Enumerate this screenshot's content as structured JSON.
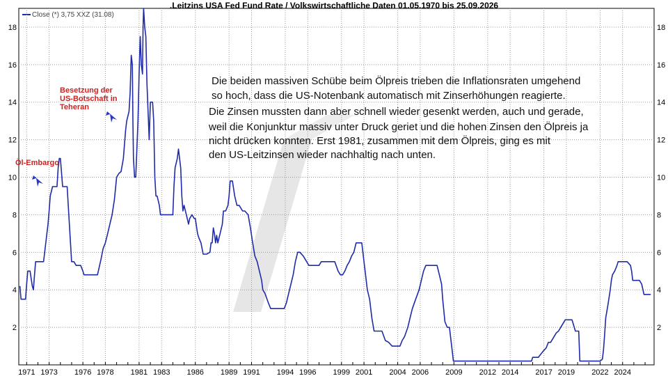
{
  "chart_data": {
    "type": "line",
    "title": ".Leitzins USA Fed Fund Rate / Volkswirtschaftliche Daten 01.05.1970 bis 25.09.2026",
    "legend": "Close (*) 3,75 XXZ (31.08)",
    "x_tick_labels": [
      "1971",
      "1973",
      "1976",
      "1978",
      "1981",
      "1983",
      "1986",
      "1989",
      "1991",
      "1994",
      "1996",
      "1999",
      "2001",
      "2004",
      "2006",
      "2009",
      "2012",
      "2014",
      "2017",
      "2019",
      "2022",
      "2024"
    ],
    "y_ticks": [
      2,
      4,
      6,
      8,
      10,
      12,
      14,
      16,
      18
    ],
    "ylim": [
      0,
      19
    ],
    "xlim": [
      1970.3,
      2026.8
    ],
    "grid": true,
    "series": [
      {
        "color": "#1f2aa8",
        "points": [
          [
            1970.4,
            4.2
          ],
          [
            1970.5,
            3.5
          ],
          [
            1970.9,
            3.5
          ],
          [
            1971.0,
            4.3
          ],
          [
            1971.1,
            5.0
          ],
          [
            1971.3,
            5.0
          ],
          [
            1971.5,
            4.2
          ],
          [
            1971.6,
            4.0
          ],
          [
            1971.7,
            4.8
          ],
          [
            1971.8,
            5.5
          ],
          [
            1972.0,
            5.5
          ],
          [
            1972.2,
            5.5
          ],
          [
            1972.5,
            5.5
          ],
          [
            1972.7,
            6.5
          ],
          [
            1972.9,
            7.5
          ],
          [
            1973.0,
            8.2
          ],
          [
            1973.1,
            9.0
          ],
          [
            1973.3,
            9.5
          ],
          [
            1973.5,
            9.5
          ],
          [
            1973.7,
            9.5
          ],
          [
            1973.8,
            10.5
          ],
          [
            1973.9,
            11.0
          ],
          [
            1974.0,
            11.0
          ],
          [
            1974.2,
            9.5
          ],
          [
            1974.4,
            9.5
          ],
          [
            1974.6,
            9.5
          ],
          [
            1974.8,
            7.5
          ],
          [
            1974.9,
            6.5
          ],
          [
            1975.0,
            5.5
          ],
          [
            1975.2,
            5.5
          ],
          [
            1975.4,
            5.3
          ],
          [
            1975.6,
            5.3
          ],
          [
            1975.8,
            5.3
          ],
          [
            1976.0,
            5.0
          ],
          [
            1976.1,
            4.8
          ],
          [
            1976.4,
            4.8
          ],
          [
            1976.7,
            4.8
          ],
          [
            1977.0,
            4.8
          ],
          [
            1977.3,
            4.8
          ],
          [
            1977.6,
            5.6
          ],
          [
            1977.8,
            6.2
          ],
          [
            1978.0,
            6.5
          ],
          [
            1978.2,
            7.0
          ],
          [
            1978.4,
            7.5
          ],
          [
            1978.6,
            8.0
          ],
          [
            1978.8,
            8.8
          ],
          [
            1979.0,
            10.0
          ],
          [
            1979.2,
            10.2
          ],
          [
            1979.4,
            10.3
          ],
          [
            1979.6,
            11.0
          ],
          [
            1979.8,
            12.5
          ],
          [
            1979.9,
            13.0
          ],
          [
            1980.1,
            13.5
          ],
          [
            1980.2,
            14.5
          ],
          [
            1980.3,
            16.5
          ],
          [
            1980.4,
            16.0
          ],
          [
            1980.45,
            13.0
          ],
          [
            1980.5,
            11.0
          ],
          [
            1980.6,
            10.0
          ],
          [
            1980.7,
            10.0
          ],
          [
            1980.8,
            11.5
          ],
          [
            1980.9,
            13.0
          ],
          [
            1981.0,
            15.5
          ],
          [
            1981.1,
            17.5
          ],
          [
            1981.2,
            16.0
          ],
          [
            1981.3,
            15.5
          ],
          [
            1981.35,
            18.0
          ],
          [
            1981.4,
            19.0
          ],
          [
            1981.5,
            18.0
          ],
          [
            1981.6,
            17.5
          ],
          [
            1981.7,
            15.0
          ],
          [
            1981.8,
            13.5
          ],
          [
            1981.9,
            12.0
          ],
          [
            1982.0,
            14.0
          ],
          [
            1982.2,
            14.0
          ],
          [
            1982.3,
            13.0
          ],
          [
            1982.4,
            10.0
          ],
          [
            1982.5,
            9.0
          ],
          [
            1982.6,
            9.0
          ],
          [
            1982.8,
            8.5
          ],
          [
            1982.9,
            8.0
          ],
          [
            1983.2,
            8.0
          ],
          [
            1983.5,
            8.0
          ],
          [
            1983.8,
            8.0
          ],
          [
            1984.0,
            8.0
          ],
          [
            1984.1,
            9.5
          ],
          [
            1984.2,
            10.5
          ],
          [
            1984.4,
            11.0
          ],
          [
            1984.5,
            11.5
          ],
          [
            1984.7,
            10.5
          ],
          [
            1984.8,
            9.0
          ],
          [
            1984.9,
            8.2
          ],
          [
            1985.0,
            8.5
          ],
          [
            1985.2,
            8.0
          ],
          [
            1985.4,
            7.5
          ],
          [
            1985.5,
            7.8
          ],
          [
            1985.7,
            8.0
          ],
          [
            1985.9,
            7.8
          ],
          [
            1986.0,
            7.8
          ],
          [
            1986.2,
            7.0
          ],
          [
            1986.3,
            6.8
          ],
          [
            1986.5,
            6.5
          ],
          [
            1986.7,
            5.9
          ],
          [
            1987.0,
            5.9
          ],
          [
            1987.3,
            6.0
          ],
          [
            1987.4,
            6.5
          ],
          [
            1987.5,
            6.5
          ],
          [
            1987.6,
            7.3
          ],
          [
            1987.7,
            7.0
          ],
          [
            1987.8,
            6.5
          ],
          [
            1987.9,
            6.9
          ],
          [
            1988.0,
            6.5
          ],
          [
            1988.2,
            7.0
          ],
          [
            1988.4,
            7.5
          ],
          [
            1988.5,
            8.2
          ],
          [
            1988.7,
            8.2
          ],
          [
            1988.9,
            8.5
          ],
          [
            1989.0,
            9.0
          ],
          [
            1989.1,
            9.8
          ],
          [
            1989.3,
            9.8
          ],
          [
            1989.5,
            9.0
          ],
          [
            1989.7,
            8.5
          ],
          [
            1989.9,
            8.5
          ],
          [
            1990.2,
            8.2
          ],
          [
            1990.4,
            8.2
          ],
          [
            1990.7,
            8.0
          ],
          [
            1990.9,
            7.3
          ],
          [
            1991.1,
            6.5
          ],
          [
            1991.3,
            5.8
          ],
          [
            1991.5,
            5.5
          ],
          [
            1991.7,
            5.0
          ],
          [
            1991.9,
            4.5
          ],
          [
            1992.0,
            4.0
          ],
          [
            1992.2,
            3.8
          ],
          [
            1992.5,
            3.3
          ],
          [
            1992.7,
            3.0
          ],
          [
            1993.0,
            3.0
          ],
          [
            1993.5,
            3.0
          ],
          [
            1993.9,
            3.0
          ],
          [
            1994.1,
            3.3
          ],
          [
            1994.3,
            3.8
          ],
          [
            1994.5,
            4.3
          ],
          [
            1994.7,
            4.8
          ],
          [
            1994.9,
            5.5
          ],
          [
            1995.1,
            6.0
          ],
          [
            1995.3,
            6.0
          ],
          [
            1995.6,
            5.8
          ],
          [
            1995.9,
            5.5
          ],
          [
            1996.1,
            5.3
          ],
          [
            1996.4,
            5.3
          ],
          [
            1996.8,
            5.3
          ],
          [
            1997.0,
            5.3
          ],
          [
            1997.2,
            5.5
          ],
          [
            1997.5,
            5.5
          ],
          [
            1997.8,
            5.5
          ],
          [
            1998.0,
            5.5
          ],
          [
            1998.4,
            5.5
          ],
          [
            1998.7,
            5.0
          ],
          [
            1998.9,
            4.8
          ],
          [
            1999.1,
            4.8
          ],
          [
            1999.3,
            5.0
          ],
          [
            1999.5,
            5.3
          ],
          [
            1999.7,
            5.5
          ],
          [
            1999.9,
            5.8
          ],
          [
            2000.1,
            6.0
          ],
          [
            2000.3,
            6.5
          ],
          [
            2000.5,
            6.5
          ],
          [
            2000.8,
            6.5
          ],
          [
            2001.0,
            5.5
          ],
          [
            2001.2,
            4.5
          ],
          [
            2001.3,
            4.0
          ],
          [
            2001.5,
            3.5
          ],
          [
            2001.7,
            2.5
          ],
          [
            2001.9,
            1.8
          ],
          [
            2002.2,
            1.8
          ],
          [
            2002.6,
            1.8
          ],
          [
            2002.9,
            1.3
          ],
          [
            2003.2,
            1.2
          ],
          [
            2003.5,
            1.0
          ],
          [
            2003.8,
            1.0
          ],
          [
            2004.2,
            1.0
          ],
          [
            2004.4,
            1.3
          ],
          [
            2004.6,
            1.5
          ],
          [
            2004.9,
            2.0
          ],
          [
            2005.1,
            2.5
          ],
          [
            2005.3,
            3.0
          ],
          [
            2005.6,
            3.5
          ],
          [
            2005.9,
            4.0
          ],
          [
            2006.1,
            4.5
          ],
          [
            2006.3,
            5.0
          ],
          [
            2006.5,
            5.3
          ],
          [
            2006.8,
            5.3
          ],
          [
            2007.2,
            5.3
          ],
          [
            2007.5,
            5.3
          ],
          [
            2007.7,
            4.8
          ],
          [
            2007.9,
            4.3
          ],
          [
            2008.0,
            3.5
          ],
          [
            2008.2,
            2.3
          ],
          [
            2008.4,
            2.0
          ],
          [
            2008.6,
            2.0
          ],
          [
            2008.8,
            1.0
          ],
          [
            2008.95,
            0.2
          ],
          [
            2009.5,
            0.2
          ],
          [
            2011.0,
            0.2
          ],
          [
            2013.0,
            0.2
          ],
          [
            2015.0,
            0.2
          ],
          [
            2015.9,
            0.2
          ],
          [
            2016.0,
            0.4
          ],
          [
            2016.5,
            0.4
          ],
          [
            2016.9,
            0.7
          ],
          [
            2017.2,
            0.9
          ],
          [
            2017.4,
            1.2
          ],
          [
            2017.6,
            1.2
          ],
          [
            2017.9,
            1.5
          ],
          [
            2018.1,
            1.7
          ],
          [
            2018.3,
            1.8
          ],
          [
            2018.5,
            2.0
          ],
          [
            2018.7,
            2.2
          ],
          [
            2018.9,
            2.4
          ],
          [
            2019.2,
            2.4
          ],
          [
            2019.5,
            2.4
          ],
          [
            2019.6,
            2.2
          ],
          [
            2019.7,
            2.0
          ],
          [
            2019.8,
            1.8
          ],
          [
            2020.1,
            1.8
          ],
          [
            2020.2,
            0.2
          ],
          [
            2021.0,
            0.2
          ],
          [
            2022.0,
            0.2
          ],
          [
            2022.2,
            0.3
          ],
          [
            2022.3,
            0.8
          ],
          [
            2022.4,
            1.6
          ],
          [
            2022.5,
            2.5
          ],
          [
            2022.7,
            3.2
          ],
          [
            2022.9,
            4.0
          ],
          [
            2023.0,
            4.5
          ],
          [
            2023.1,
            4.8
          ],
          [
            2023.3,
            5.0
          ],
          [
            2023.5,
            5.3
          ],
          [
            2023.6,
            5.5
          ],
          [
            2024.0,
            5.5
          ],
          [
            2024.4,
            5.5
          ],
          [
            2024.7,
            5.3
          ],
          [
            2024.8,
            5.0
          ],
          [
            2024.9,
            4.5
          ],
          [
            2025.2,
            4.5
          ],
          [
            2025.5,
            4.5
          ],
          [
            2025.7,
            4.3
          ],
          [
            2025.9,
            3.75
          ],
          [
            2026.2,
            3.75
          ],
          [
            2026.5,
            3.75
          ]
        ]
      }
    ],
    "annotations": [
      {
        "id": "oel",
        "text": "Öl-Embargo"
      },
      {
        "id": "teheran",
        "lines": [
          "Besetzung der",
          "US-Botschaft in",
          "Teheran"
        ]
      }
    ],
    "note_lines": [
      "Die beiden massiven Schübe beim Ölpreis trieben die Inflationsraten umgehend",
      "so hoch, dass die US-Notenbank automatisch mit Zinserhöhungen reagierte.",
      "Die Zinsen mussten dann aber schnell wieder gesenkt werden, auch und gerade,",
      "weil die Konjunktur massiv unter Druck geriet und die hohen Zinsen den Ölpreis ja",
      "nicht drücken konnten. Erst 1981, zusammen mit dem Ölpreis, ging es mit",
      "den US-Leitzinsen wieder nachhaltig nach unten."
    ],
    "tick_positions": [
      1971,
      1973,
      1976,
      1978,
      1981,
      1983,
      1986,
      1989,
      1991,
      1994,
      1996,
      1999,
      2001,
      2004,
      2006,
      2009,
      2012,
      2014,
      2017,
      2019,
      2022,
      2024
    ]
  }
}
